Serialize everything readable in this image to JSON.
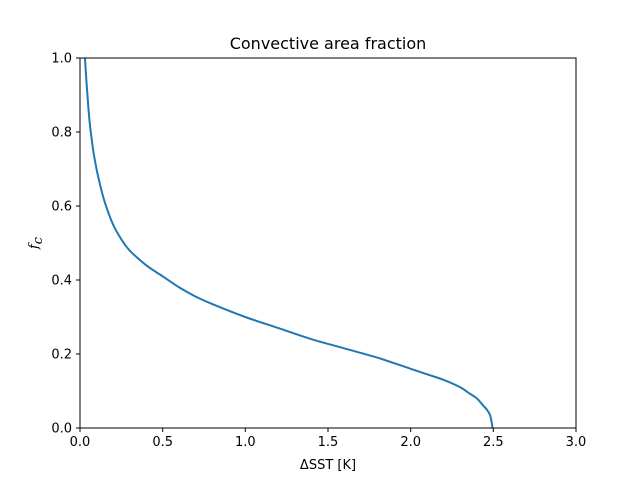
{
  "chart_data": {
    "type": "line",
    "title": "Convective area fraction",
    "xlabel": "ΔSST [K]",
    "ylabel": "f",
    "ylabel_subscript": "c",
    "xlim": [
      0.0,
      3.0
    ],
    "ylim": [
      0.0,
      1.0
    ],
    "xticks": [
      "0.0",
      "0.5",
      "1.0",
      "1.5",
      "2.0",
      "2.5",
      "3.0"
    ],
    "yticks": [
      "0.0",
      "0.2",
      "0.4",
      "0.6",
      "0.8",
      "1.0"
    ],
    "grid": false,
    "series": [
      {
        "color": "#1f77b4",
        "x": [
          0.03,
          0.04,
          0.05,
          0.06,
          0.08,
          0.1,
          0.12,
          0.15,
          0.2,
          0.25,
          0.3,
          0.4,
          0.5,
          0.6,
          0.7,
          0.8,
          1.0,
          1.2,
          1.4,
          1.6,
          1.8,
          2.0,
          2.1,
          2.2,
          2.3,
          2.35,
          2.4,
          2.44,
          2.46,
          2.48,
          2.49,
          2.495
        ],
        "y": [
          1.0,
          0.93,
          0.87,
          0.82,
          0.75,
          0.7,
          0.66,
          0.61,
          0.55,
          0.51,
          0.48,
          0.44,
          0.41,
          0.38,
          0.355,
          0.335,
          0.3,
          0.27,
          0.24,
          0.215,
          0.19,
          0.16,
          0.145,
          0.13,
          0.11,
          0.095,
          0.08,
          0.06,
          0.05,
          0.035,
          0.015,
          0.0
        ]
      }
    ]
  }
}
